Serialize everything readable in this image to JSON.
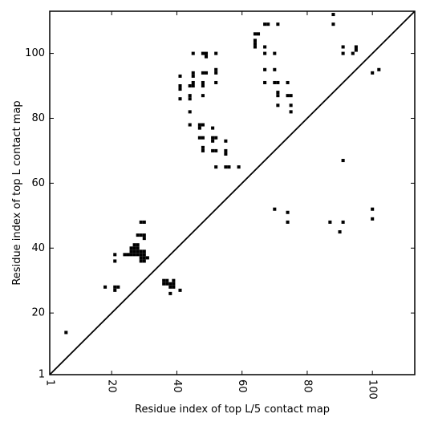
{
  "chart_data": {
    "type": "scatter",
    "title": "",
    "xlabel": "Residue index of top L/5 contact map",
    "ylabel": "Residue index of top L contact map",
    "xlim": [
      1,
      113
    ],
    "ylim": [
      1,
      113
    ],
    "x_ticks": [
      1,
      20,
      40,
      60,
      80,
      100
    ],
    "y_ticks": [
      1,
      20,
      40,
      60,
      80,
      100
    ],
    "x_tick_rotation": 90,
    "grid": false,
    "diagonal": true,
    "marker_color": "#000000",
    "upper_points": [
      [
        88,
        112
      ],
      [
        88,
        109
      ],
      [
        67,
        109
      ],
      [
        68,
        109
      ],
      [
        71,
        109
      ],
      [
        64,
        106
      ],
      [
        65,
        106
      ],
      [
        64,
        104
      ],
      [
        64,
        103
      ],
      [
        64,
        102
      ],
      [
        67,
        102
      ],
      [
        91,
        102
      ],
      [
        95,
        102
      ],
      [
        95,
        101
      ],
      [
        91,
        100
      ],
      [
        94,
        100
      ],
      [
        45,
        100
      ],
      [
        48,
        100
      ],
      [
        49,
        100
      ],
      [
        49,
        99
      ],
      [
        52,
        100
      ],
      [
        67,
        100
      ],
      [
        70,
        100
      ],
      [
        67,
        95
      ],
      [
        70,
        95
      ],
      [
        100,
        94
      ],
      [
        102,
        95
      ],
      [
        52,
        95
      ],
      [
        52,
        94
      ],
      [
        48,
        94
      ],
      [
        49,
        94
      ],
      [
        45,
        94
      ],
      [
        45,
        93
      ],
      [
        41,
        93
      ],
      [
        67,
        91
      ],
      [
        70,
        91
      ],
      [
        71,
        91
      ],
      [
        74,
        91
      ],
      [
        52,
        91
      ],
      [
        48,
        91
      ],
      [
        48,
        90
      ],
      [
        45,
        91
      ],
      [
        45,
        90
      ],
      [
        44,
        90
      ],
      [
        41,
        90
      ],
      [
        41,
        89
      ],
      [
        71,
        88
      ],
      [
        71,
        87
      ],
      [
        74,
        87
      ],
      [
        75,
        87
      ],
      [
        44,
        87
      ],
      [
        44,
        86
      ],
      [
        41,
        86
      ],
      [
        48,
        87
      ],
      [
        71,
        84
      ],
      [
        75,
        84
      ],
      [
        75,
        82
      ],
      [
        44,
        82
      ],
      [
        44,
        78
      ],
      [
        47,
        78
      ],
      [
        48,
        78
      ],
      [
        47,
        77
      ],
      [
        51,
        77
      ],
      [
        47,
        74
      ],
      [
        48,
        74
      ],
      [
        51,
        74
      ],
      [
        52,
        74
      ],
      [
        51,
        73
      ],
      [
        55,
        73
      ],
      [
        48,
        71
      ],
      [
        48,
        70
      ],
      [
        51,
        70
      ],
      [
        52,
        70
      ],
      [
        55,
        70
      ],
      [
        55,
        69
      ],
      [
        91,
        67
      ],
      [
        52,
        65
      ],
      [
        55,
        65
      ],
      [
        56,
        65
      ],
      [
        59,
        65
      ]
    ],
    "lower_points": [
      [
        70,
        52
      ],
      [
        74,
        51
      ],
      [
        100,
        52
      ],
      [
        100,
        49
      ],
      [
        74,
        48
      ],
      [
        87,
        48
      ],
      [
        91,
        48
      ],
      [
        90,
        45
      ],
      [
        29,
        48
      ],
      [
        30,
        48
      ],
      [
        28,
        44
      ],
      [
        29,
        44
      ],
      [
        30,
        44
      ],
      [
        30,
        43
      ],
      [
        27,
        41
      ],
      [
        28,
        41
      ],
      [
        26,
        40
      ],
      [
        27,
        40
      ],
      [
        28,
        40
      ],
      [
        21,
        38
      ],
      [
        24,
        38
      ],
      [
        25,
        38
      ],
      [
        26,
        38
      ],
      [
        27,
        38
      ],
      [
        28,
        38
      ],
      [
        29,
        38
      ],
      [
        30,
        38
      ],
      [
        26,
        39
      ],
      [
        27,
        39
      ],
      [
        28,
        39
      ],
      [
        29,
        39
      ],
      [
        30,
        39
      ],
      [
        21,
        36
      ],
      [
        29,
        36
      ],
      [
        30,
        36
      ],
      [
        29,
        37
      ],
      [
        30,
        37
      ],
      [
        31,
        37
      ],
      [
        36,
        30
      ],
      [
        37,
        30
      ],
      [
        39,
        30
      ],
      [
        36,
        29
      ],
      [
        37,
        29
      ],
      [
        38,
        29
      ],
      [
        39,
        29
      ],
      [
        38,
        28
      ],
      [
        39,
        28
      ],
      [
        18,
        28
      ],
      [
        21,
        28
      ],
      [
        22,
        28
      ],
      [
        21,
        27
      ],
      [
        41,
        27
      ],
      [
        38,
        26
      ],
      [
        6,
        14
      ]
    ]
  }
}
